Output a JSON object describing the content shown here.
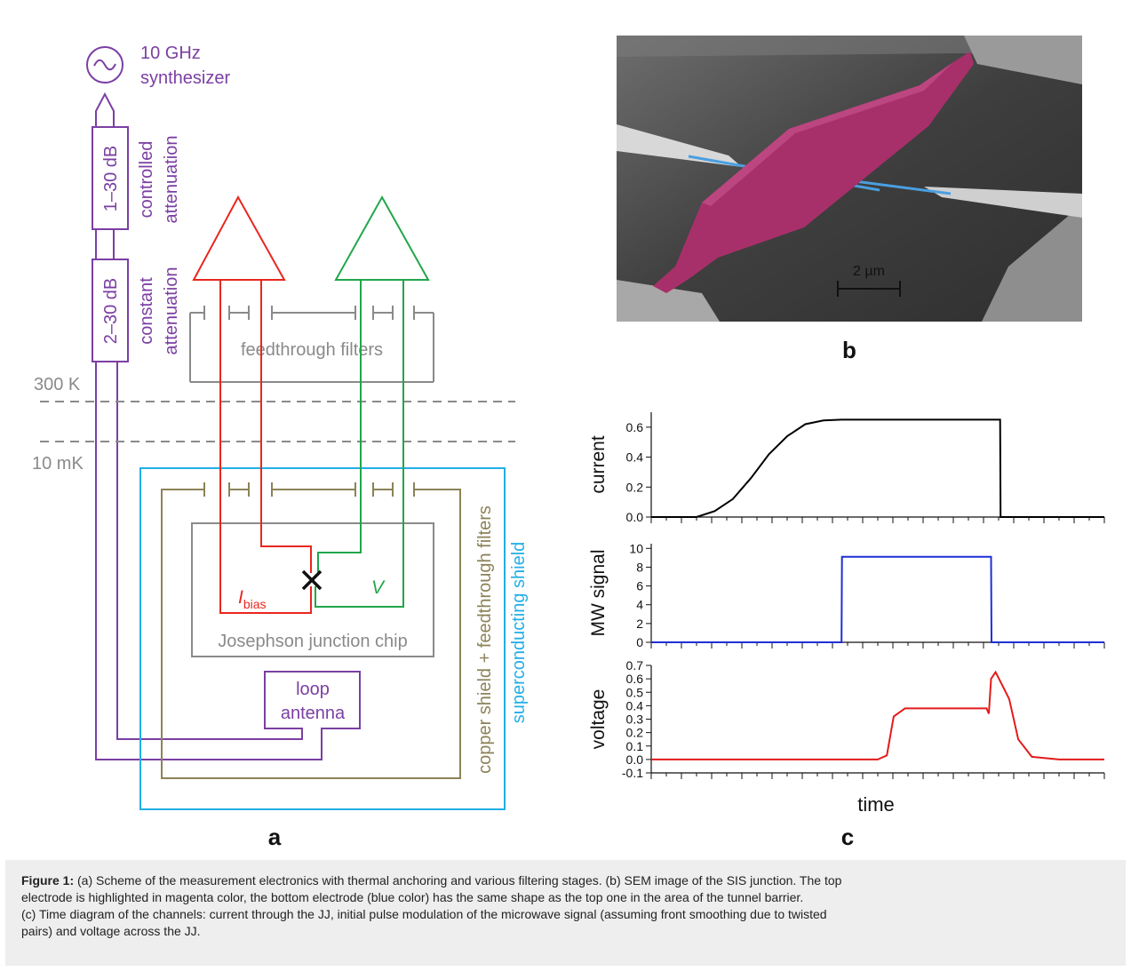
{
  "panel_a": {
    "label": "a",
    "synth_line1": "10 GHz",
    "synth_line2": "synthesizer",
    "att1_value": "1–30 dB",
    "att1_label1": "controlled",
    "att1_label2": "attenuation",
    "att2_value": "2–30 dB",
    "att2_label1": "constant",
    "att2_label2": "attenuation",
    "feedthrough_label": "feedthrough filters",
    "temp_300k": "300 K",
    "temp_10mk": "10 mK",
    "bias_label": "I",
    "bias_sub": "bias",
    "voltage_label": "V",
    "chip_label": "Josephson junction chip",
    "antenna_line1": "loop",
    "antenna_line2": "antenna",
    "copper_label": "copper shield + feedthrough filters",
    "sc_label": "superconducting shield",
    "colors": {
      "purple": "#7b3fa3",
      "red": "#e8271f",
      "green": "#21a64a",
      "gray": "#8a8a8a",
      "olive": "#8c8258",
      "cyan": "#22aee6"
    }
  },
  "panel_b": {
    "label": "b",
    "scale_label": "2 µm",
    "colors": {
      "top_electrode": "#a8306a",
      "bottom_electrode": "#4a9fe0"
    }
  },
  "panel_c": {
    "label": "c",
    "xlabel": "time"
  },
  "chart_data": [
    {
      "type": "line",
      "ylabel": "current",
      "ylim": [
        0.0,
        0.7
      ],
      "yticks": [
        "0.0",
        "0.2",
        "0.4",
        "0.6"
      ],
      "series": [
        {
          "color": "#000000",
          "x": [
            0,
            0.06,
            0.1,
            0.14,
            0.18,
            0.22,
            0.26,
            0.3,
            0.34,
            0.38,
            0.42,
            0.5,
            0.6,
            0.7,
            0.77,
            0.771,
            0.8,
            0.9,
            1.0
          ],
          "y": [
            0.0,
            0.0,
            0.0,
            0.04,
            0.12,
            0.26,
            0.42,
            0.54,
            0.62,
            0.645,
            0.65,
            0.65,
            0.65,
            0.65,
            0.65,
            0.0,
            0.0,
            0.0,
            0.0
          ]
        }
      ]
    },
    {
      "type": "line",
      "ylabel": "MW signal",
      "ylim": [
        0,
        10.5
      ],
      "yticks": [
        "0",
        "2",
        "4",
        "6",
        "8",
        "10"
      ],
      "series": [
        {
          "color": "#1f2fd4",
          "x": [
            0,
            0.42,
            0.421,
            0.5,
            0.6,
            0.7,
            0.75,
            0.751,
            0.85,
            1.0
          ],
          "y": [
            0,
            0,
            9.1,
            9.1,
            9.1,
            9.1,
            9.1,
            0,
            0,
            0
          ]
        }
      ]
    },
    {
      "type": "line",
      "ylabel": "voltage",
      "ylim": [
        -0.1,
        0.7
      ],
      "yticks": [
        "-0.1",
        "0.0",
        "0.1",
        "0.2",
        "0.3",
        "0.4",
        "0.5",
        "0.6",
        "0.7"
      ],
      "series": [
        {
          "color": "#e31b1b",
          "x": [
            0,
            0.1,
            0.2,
            0.3,
            0.4,
            0.5,
            0.52,
            0.535,
            0.56,
            0.6,
            0.65,
            0.7,
            0.74,
            0.745,
            0.75,
            0.76,
            0.775,
            0.79,
            0.81,
            0.84,
            0.9,
            1.0
          ],
          "y": [
            0,
            0,
            0,
            0,
            0,
            0,
            0.03,
            0.32,
            0.38,
            0.38,
            0.38,
            0.38,
            0.38,
            0.34,
            0.6,
            0.65,
            0.55,
            0.45,
            0.15,
            0.02,
            0,
            0
          ]
        }
      ]
    }
  ],
  "caption": {
    "bold": "Figure 1:",
    "line1": " (a) Scheme of the measurement electronics with thermal anchoring and various filtering stages. (b) SEM image of the SIS junction. The top",
    "line2": "electrode is highlighted in magenta color, the bottom electrode (blue color) has the same shape as the top one in the area of the tunnel barrier.",
    "line3": "(c) Time diagram of the channels: current through the JJ, initial pulse modulation of the microwave signal (assuming front smoothing due to twisted",
    "line4": "pairs) and voltage across the JJ."
  }
}
